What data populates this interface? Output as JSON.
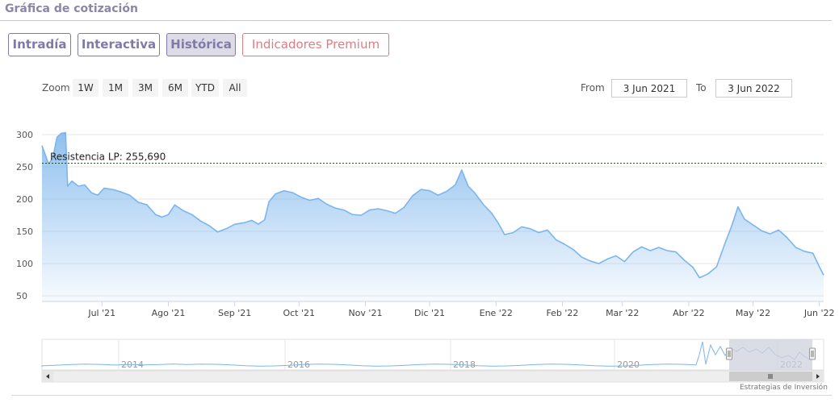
{
  "header": {
    "title": "Gráfica de cotización"
  },
  "tabs": [
    {
      "label": "Intradía",
      "active": false
    },
    {
      "label": "Interactiva",
      "active": false
    },
    {
      "label": "Histórica",
      "active": true
    },
    {
      "label": "Indicadores Premium",
      "active": false,
      "premium": true
    }
  ],
  "zoom": {
    "label": "Zoom",
    "buttons": [
      "1W",
      "1M",
      "3M",
      "6M",
      "YTD",
      "All"
    ]
  },
  "range": {
    "from_label": "From",
    "from_value": "3 Jun 2021",
    "to_label": "To",
    "to_value": "3 Jun 2022"
  },
  "credit": "Estrategias de Inversión",
  "colors": {
    "line": "#7cb5ec",
    "tab_border": "#7f7aa8",
    "premium": "#e07b84",
    "navigator_mask": "#cfd2de"
  },
  "chart_data": {
    "type": "area",
    "title": "",
    "xlabel": "",
    "ylabel": "",
    "x_range": [
      "2021-06-03",
      "2022-06-03"
    ],
    "ylim": [
      50,
      320
    ],
    "y_ticks": [
      50,
      100,
      150,
      200,
      250,
      300
    ],
    "x_ticks": [
      {
        "label": "Jul '21",
        "date": "2021-07-01"
      },
      {
        "label": "Ago '21",
        "date": "2021-08-01"
      },
      {
        "label": "Sep '21",
        "date": "2021-09-01"
      },
      {
        "label": "Oct '21",
        "date": "2021-10-01"
      },
      {
        "label": "Nov '21",
        "date": "2021-11-01"
      },
      {
        "label": "Dic '21",
        "date": "2021-12-01"
      },
      {
        "label": "Ene '22",
        "date": "2022-01-01"
      },
      {
        "label": "Feb '22",
        "date": "2022-02-01"
      },
      {
        "label": "Mar '22",
        "date": "2022-03-01"
      },
      {
        "label": "Abr '22",
        "date": "2022-04-01"
      },
      {
        "label": "May '22",
        "date": "2022-05-01"
      },
      {
        "label": "Jun '22",
        "date": "2022-06-01"
      }
    ],
    "grid": true,
    "annotation": {
      "label": "Resistencia LP: 255,690",
      "value": 255.69
    },
    "series": [
      {
        "values": [
          [
            "2021-06-03",
            283
          ],
          [
            "2021-06-06",
            255
          ],
          [
            "2021-06-08",
            263
          ],
          [
            "2021-06-10",
            296
          ],
          [
            "2021-06-12",
            302
          ],
          [
            "2021-06-14",
            303
          ],
          [
            "2021-06-15",
            220
          ],
          [
            "2021-06-17",
            228
          ],
          [
            "2021-06-20",
            220
          ],
          [
            "2021-06-23",
            222
          ],
          [
            "2021-06-26",
            210
          ],
          [
            "2021-06-29",
            206
          ],
          [
            "2021-07-02",
            217
          ],
          [
            "2021-07-06",
            215
          ],
          [
            "2021-07-10",
            211
          ],
          [
            "2021-07-14",
            206
          ],
          [
            "2021-07-18",
            195
          ],
          [
            "2021-07-22",
            191
          ],
          [
            "2021-07-26",
            176
          ],
          [
            "2021-07-29",
            172
          ],
          [
            "2021-08-01",
            176
          ],
          [
            "2021-08-04",
            191
          ],
          [
            "2021-08-08",
            182
          ],
          [
            "2021-08-12",
            176
          ],
          [
            "2021-08-16",
            166
          ],
          [
            "2021-08-20",
            159
          ],
          [
            "2021-08-24",
            149
          ],
          [
            "2021-08-28",
            154
          ],
          [
            "2021-09-01",
            161
          ],
          [
            "2021-09-05",
            163
          ],
          [
            "2021-09-09",
            167
          ],
          [
            "2021-09-12",
            161
          ],
          [
            "2021-09-15",
            168
          ],
          [
            "2021-09-17",
            196
          ],
          [
            "2021-09-20",
            208
          ],
          [
            "2021-09-24",
            213
          ],
          [
            "2021-09-28",
            210
          ],
          [
            "2021-10-02",
            203
          ],
          [
            "2021-10-06",
            198
          ],
          [
            "2021-10-10",
            201
          ],
          [
            "2021-10-14",
            192
          ],
          [
            "2021-10-18",
            186
          ],
          [
            "2021-10-22",
            183
          ],
          [
            "2021-10-26",
            176
          ],
          [
            "2021-10-30",
            175
          ],
          [
            "2021-11-03",
            183
          ],
          [
            "2021-11-07",
            185
          ],
          [
            "2021-11-11",
            182
          ],
          [
            "2021-11-15",
            178
          ],
          [
            "2021-11-19",
            187
          ],
          [
            "2021-11-23",
            205
          ],
          [
            "2021-11-27",
            215
          ],
          [
            "2021-12-01",
            213
          ],
          [
            "2021-12-05",
            206
          ],
          [
            "2021-12-09",
            212
          ],
          [
            "2021-12-13",
            222
          ],
          [
            "2021-12-16",
            245
          ],
          [
            "2021-12-19",
            220
          ],
          [
            "2021-12-22",
            210
          ],
          [
            "2021-12-26",
            192
          ],
          [
            "2021-12-30",
            178
          ],
          [
            "2022-01-02",
            163
          ],
          [
            "2022-01-05",
            145
          ],
          [
            "2022-01-09",
            148
          ],
          [
            "2022-01-13",
            157
          ],
          [
            "2022-01-17",
            154
          ],
          [
            "2022-01-21",
            148
          ],
          [
            "2022-01-25",
            152
          ],
          [
            "2022-01-29",
            137
          ],
          [
            "2022-02-02",
            130
          ],
          [
            "2022-02-06",
            122
          ],
          [
            "2022-02-10",
            110
          ],
          [
            "2022-02-14",
            104
          ],
          [
            "2022-02-18",
            100
          ],
          [
            "2022-02-22",
            107
          ],
          [
            "2022-02-26",
            112
          ],
          [
            "2022-03-02",
            103
          ],
          [
            "2022-03-06",
            118
          ],
          [
            "2022-03-10",
            126
          ],
          [
            "2022-03-14",
            120
          ],
          [
            "2022-03-18",
            125
          ],
          [
            "2022-03-22",
            120
          ],
          [
            "2022-03-26",
            118
          ],
          [
            "2022-03-30",
            105
          ],
          [
            "2022-04-03",
            94
          ],
          [
            "2022-04-06",
            78
          ],
          [
            "2022-04-10",
            84
          ],
          [
            "2022-04-14",
            95
          ],
          [
            "2022-04-18",
            132
          ],
          [
            "2022-04-21",
            158
          ],
          [
            "2022-04-24",
            188
          ],
          [
            "2022-04-27",
            169
          ],
          [
            "2022-05-01",
            160
          ],
          [
            "2022-05-05",
            151
          ],
          [
            "2022-05-09",
            146
          ],
          [
            "2022-05-13",
            152
          ],
          [
            "2022-05-17",
            140
          ],
          [
            "2022-05-21",
            125
          ],
          [
            "2022-05-25",
            119
          ],
          [
            "2022-05-29",
            116
          ],
          [
            "2022-06-01",
            95
          ],
          [
            "2022-06-03",
            82
          ]
        ]
      }
    ],
    "navigator": {
      "year_labels": [
        "2014",
        "2016",
        "2018",
        "2020",
        "2022"
      ],
      "selected_range": [
        "2021-06-03",
        "2022-06-03"
      ]
    }
  }
}
